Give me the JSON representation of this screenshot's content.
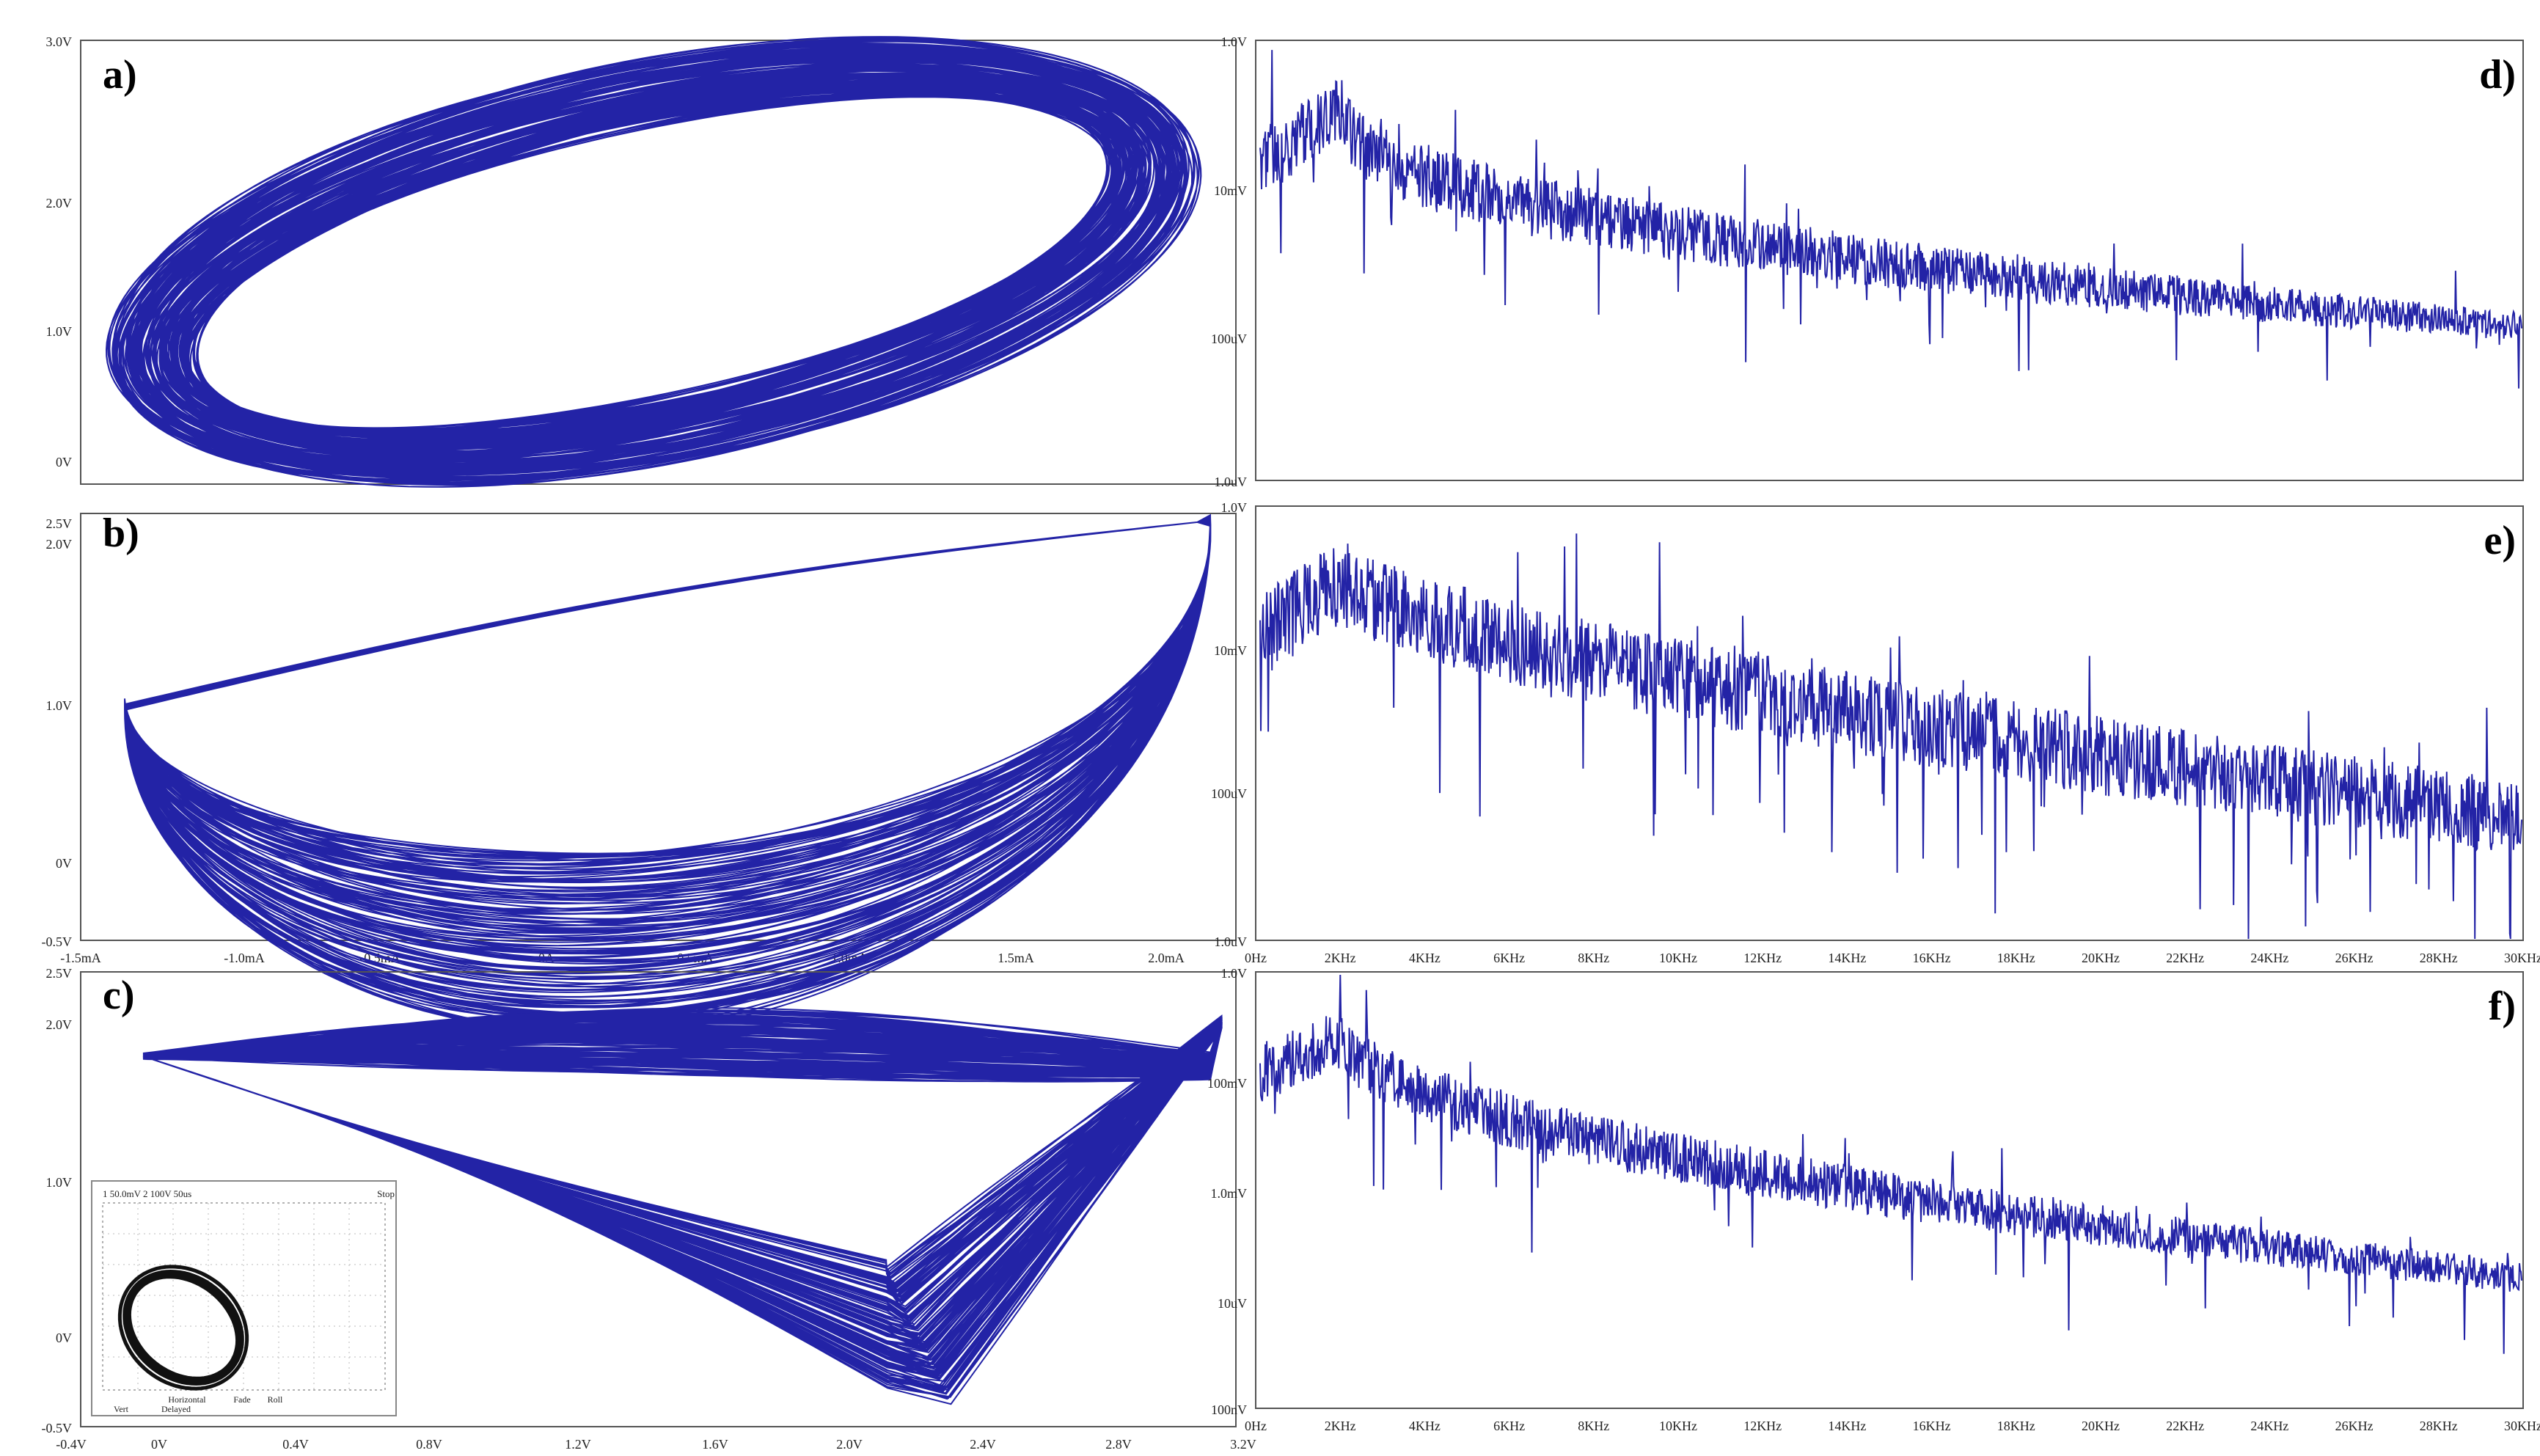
{
  "colors": {
    "trace": "#2323a6",
    "frame": "#555555",
    "tick_text": "#222222",
    "panel_label": "#000000"
  },
  "chart_data": [
    {
      "id": "a",
      "type": "scatter",
      "panel_label": "a)",
      "y_ticks": [
        "3.0V",
        "2.0V",
        "1.0V",
        "0V"
      ],
      "x_ticks": [],
      "attractor": {
        "shape": "single-band-loop"
      }
    },
    {
      "id": "b",
      "type": "scatter",
      "panel_label": "b)",
      "y_ticks": [
        "2.5V",
        "2.0V",
        "1.0V",
        "0V",
        "-0.5V"
      ],
      "x_ticks": [
        "-1.5mA",
        "-1.0mA",
        "-0.5mA",
        "0A",
        "0.5mA",
        "1.0mA",
        "1.5mA",
        "2.0mA"
      ],
      "attractor": {
        "shape": "folded-band"
      }
    },
    {
      "id": "c",
      "type": "scatter",
      "panel_label": "c)",
      "y_ticks": [
        "2.5V",
        "2.0V",
        "1.0V",
        "0V",
        "-0.5V"
      ],
      "x_ticks": [
        "-0.4V",
        "0V",
        "0.4V",
        "0.8V",
        "1.2V",
        "1.6V",
        "2.0V",
        "2.4V",
        "2.8V",
        "3.2V"
      ],
      "attractor": {
        "shape": "funnel"
      },
      "inset": {
        "header": "1 50.0mV  2 100V  50us",
        "status": "Stop",
        "footer": [
          "Vert",
          "Horizontal",
          "Fade",
          "Roll",
          "Delayed"
        ]
      }
    },
    {
      "id": "d",
      "type": "line",
      "panel_label": "d)",
      "y_ticks": [
        "1.0V",
        "10mV",
        "100uV",
        "1.0uV"
      ],
      "x_ticks": [],
      "spectrum": {
        "peak_hz": 5000,
        "decay": "fast"
      }
    },
    {
      "id": "e",
      "type": "line",
      "panel_label": "e)",
      "y_ticks": [
        "1.0V",
        "10mV",
        "100uV",
        "1.0uV"
      ],
      "x_ticks": [
        "0Hz",
        "2KHz",
        "4KHz",
        "6KHz",
        "8KHz",
        "10KHz",
        "12KHz",
        "14KHz",
        "16KHz",
        "18KHz",
        "20KHz",
        "22KHz",
        "24KHz",
        "26KHz",
        "28KHz",
        "30KHz"
      ],
      "spectrum": {
        "peak_hz": 5000,
        "decay": "slow"
      }
    },
    {
      "id": "f",
      "type": "line",
      "panel_label": "f)",
      "y_ticks": [
        "1.0V",
        "100mV",
        "1.0mV",
        "10uV",
        "100nV"
      ],
      "x_ticks": [
        "0Hz",
        "2KHz",
        "4KHz",
        "6KHz",
        "8KHz",
        "10KHz",
        "12KHz",
        "14KHz",
        "16KHz",
        "18KHz",
        "20KHz",
        "22KHz",
        "24KHz",
        "26KHz",
        "28KHz",
        "30KHz"
      ],
      "spectrum": {
        "peak_hz": 5000,
        "decay": "medium"
      }
    }
  ]
}
